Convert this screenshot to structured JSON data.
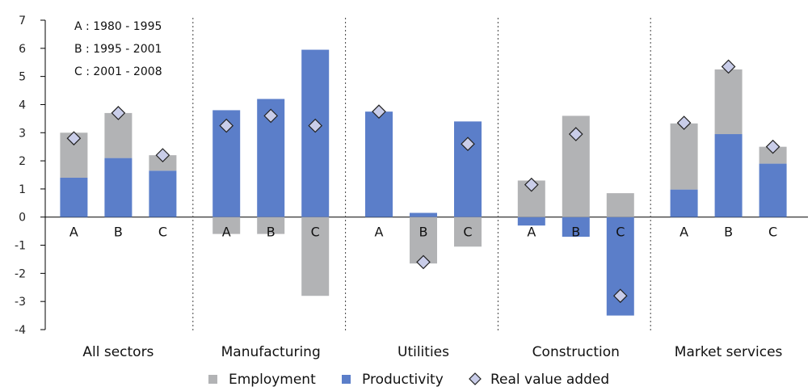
{
  "chart_data": {
    "type": "bar",
    "stacked": true,
    "title": "",
    "xlabel": "",
    "ylabel": "",
    "ylim": [
      -4,
      7
    ],
    "yticks": [
      -4,
      -3,
      -2,
      -1,
      0,
      1,
      2,
      3,
      4,
      5,
      6,
      7
    ],
    "ytick_labels": [
      "-4",
      "-3",
      "-2",
      "-1",
      "0",
      "1",
      "2",
      "3",
      "4",
      "5",
      "6",
      "7"
    ],
    "grid": false,
    "legend_position": "bottom",
    "groups": [
      "All sectors",
      "Manufacturing",
      "Utilities",
      "Construction",
      "Market services"
    ],
    "period_labels": [
      "A",
      "B",
      "C"
    ],
    "period_notes": [
      "A : 1980 - 1995",
      "B : 1995 - 2001",
      "C : 2001 - 2008"
    ],
    "series": [
      {
        "name": "Employment",
        "kind": "bar",
        "color": "#b2b3b5",
        "values": [
          [
            1.6,
            1.6,
            0.55
          ],
          [
            -0.6,
            -0.6,
            -2.8
          ],
          [
            0.0,
            -1.65,
            -1.05
          ],
          [
            1.3,
            3.6,
            0.85
          ],
          [
            2.35,
            2.3,
            0.6
          ]
        ]
      },
      {
        "name": "Productivity",
        "kind": "bar",
        "color": "#5b7ec9",
        "values": [
          [
            1.4,
            2.1,
            1.65
          ],
          [
            3.8,
            4.2,
            5.95
          ],
          [
            3.75,
            0.15,
            3.4
          ],
          [
            -0.3,
            -0.7,
            -3.5
          ],
          [
            0.98,
            2.95,
            1.9
          ]
        ]
      },
      {
        "name": "Real value added",
        "kind": "marker",
        "marker": "diamond",
        "color": "#c9cde9",
        "values": [
          [
            2.8,
            3.7,
            2.2
          ],
          [
            3.25,
            3.6,
            3.25
          ],
          [
            3.75,
            -1.6,
            2.6
          ],
          [
            1.15,
            2.95,
            -2.8
          ],
          [
            3.35,
            5.35,
            2.5
          ]
        ]
      }
    ]
  }
}
